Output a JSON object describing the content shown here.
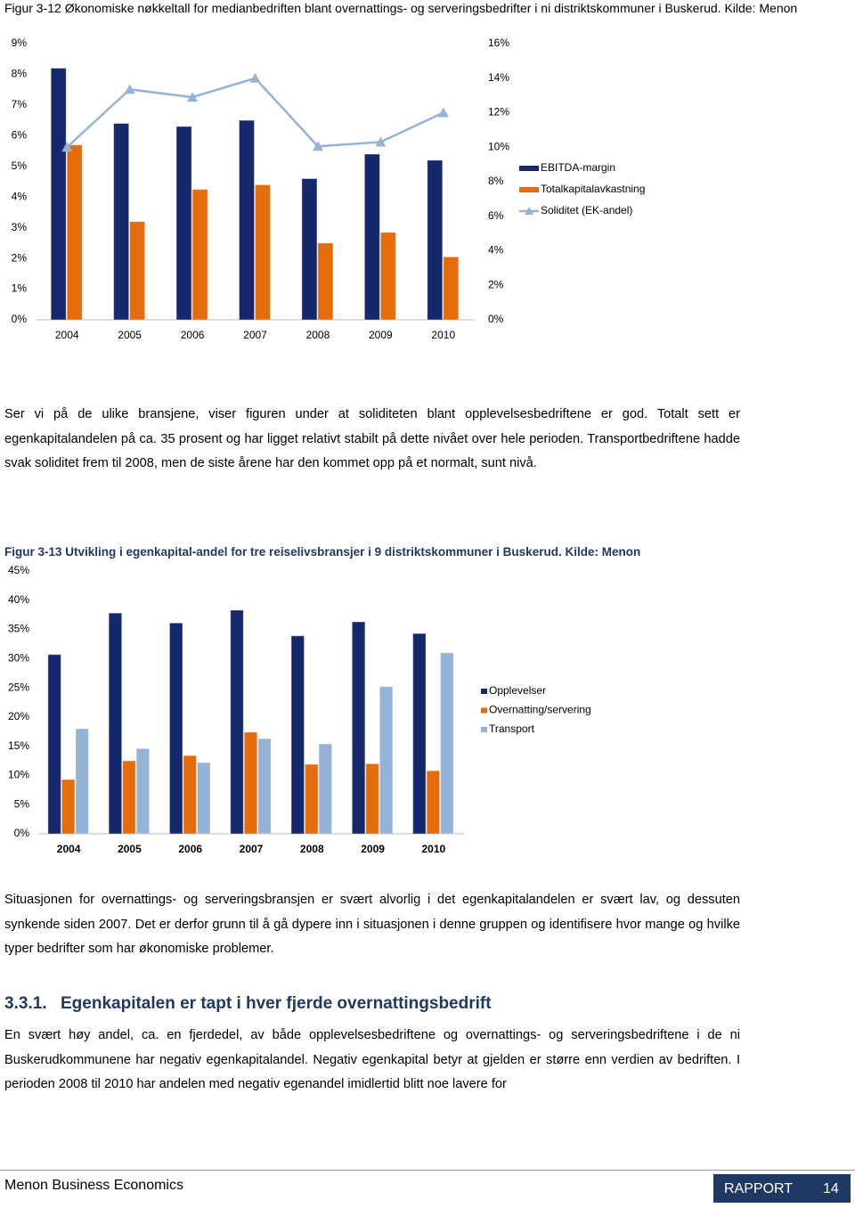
{
  "chart_data": [
    {
      "type": "bar",
      "title": "Figur 3-12 Økonomiske nøkkeltall for medianbedriften blant overnattings- og serveringsbedrifter i ni distriktskommuner i Buskerud. Kilde: Menon",
      "categories": [
        "2004",
        "2005",
        "2006",
        "2007",
        "2008",
        "2009",
        "2010"
      ],
      "series": [
        {
          "name": "EBITDA-margin",
          "color": "#14286b",
          "values": [
            8.2,
            6.4,
            6.3,
            6.5,
            4.6,
            5.4,
            5.2
          ]
        },
        {
          "name": "Totalkapitalavkastning",
          "color": "#e46c0a",
          "values": [
            5.7,
            3.2,
            4.25,
            4.4,
            2.5,
            2.85,
            2.05
          ]
        },
        {
          "name": "Soliditet (EK-andel)",
          "color": "#95b3d7",
          "type": "line",
          "axis": "y2",
          "values": [
            10.0,
            13.35,
            12.9,
            14.0,
            10.05,
            10.3,
            12.0
          ]
        }
      ],
      "ylim": [
        0,
        9
      ],
      "yticks": [
        {
          "value": 0,
          "label": "0%"
        },
        {
          "value": 1,
          "label": "1%"
        },
        {
          "value": 2,
          "label": "2%"
        },
        {
          "value": 3,
          "label": "3%"
        },
        {
          "value": 4,
          "label": "4%"
        },
        {
          "value": 5,
          "label": "5%"
        },
        {
          "value": 6,
          "label": "6%"
        },
        {
          "value": 7,
          "label": "7%"
        },
        {
          "value": 8,
          "label": "8%"
        },
        {
          "value": 9,
          "label": "9%"
        }
      ],
      "y2lim": [
        0,
        16
      ],
      "y2ticks": [
        {
          "value": 0,
          "label": "0%"
        },
        {
          "value": 2,
          "label": "2%"
        },
        {
          "value": 4,
          "label": "4%"
        },
        {
          "value": 6,
          "label": "6%"
        },
        {
          "value": 8,
          "label": "8%"
        },
        {
          "value": 10,
          "label": "10%"
        },
        {
          "value": 12,
          "label": "12%"
        },
        {
          "value": 14,
          "label": "14%"
        },
        {
          "value": 16,
          "label": "16%"
        }
      ],
      "grid": false,
      "legend": "right"
    },
    {
      "type": "bar",
      "title": "Figur 3-13 Utvikling i egenkapital-andel for tre reiselivsbransjer i 9 distriktskommuner i Buskerud. Kilde: Menon",
      "categories": [
        "2004",
        "2005",
        "2006",
        "2007",
        "2008",
        "2009",
        "2010"
      ],
      "series": [
        {
          "name": "Opplevelser",
          "color": "#14286b",
          "values": [
            30.7,
            37.8,
            36.1,
            38.3,
            33.9,
            36.3,
            34.3
          ]
        },
        {
          "name": "Overnatting/servering",
          "color": "#e46c0a",
          "values": [
            9.3,
            12.5,
            13.4,
            17.4,
            11.9,
            12.0,
            10.8
          ]
        },
        {
          "name": "Transport",
          "color": "#95b3d7",
          "values": [
            18.0,
            14.6,
            12.2,
            16.3,
            15.4,
            25.2,
            31.0
          ]
        }
      ],
      "ylim": [
        0,
        45
      ],
      "yticks": [
        {
          "value": 0,
          "label": "0%"
        },
        {
          "value": 5,
          "label": "5%"
        },
        {
          "value": 10,
          "label": "10%"
        },
        {
          "value": 15,
          "label": "15%"
        },
        {
          "value": 20,
          "label": "20%"
        },
        {
          "value": 25,
          "label": "25%"
        },
        {
          "value": 30,
          "label": "30%"
        },
        {
          "value": 35,
          "label": "35%"
        },
        {
          "value": 40,
          "label": "40%"
        },
        {
          "value": 45,
          "label": "45%"
        }
      ],
      "grid": false,
      "legend": "right"
    }
  ],
  "document": {
    "paragraphs": [
      "Ser vi på de ulike bransjene, viser figuren under at soliditeten blant opplevelsesbedriftene er god. Totalt sett er egenkapitalandelen på ca. 35 prosent og har ligget relativt stabilt på dette nivået over hele perioden. Transportbedriftene hadde svak soliditet frem til 2008, men de siste årene har den kommet opp på et normalt, sunt nivå.",
      "Situasjonen for overnattings- og serveringsbransjen er svært alvorlig i det egenkapitalandelen er svært lav, og dessuten synkende siden 2007. Det er derfor grunn til å gå dypere inn i situasjonen i denne gruppen og identifisere hvor mange og hvilke typer bedrifter som har økonomiske problemer.",
      "En svært høy andel, ca. en fjerdedel, av både opplevelsesbedriftene og overnattings- og serveringsbedriftene i de ni Buskerudkommunene har negativ egenkapitalandel. Negativ egenkapital betyr at gjelden er større enn verdien av bedriften. I perioden 2008 til 2010 har andelen med negativ egenandel imidlertid blitt noe lavere for"
    ],
    "heading": {
      "number": "3.3.1.",
      "text": "Egenkapitalen er tapt i hver fjerde overnattingsbedrift"
    },
    "footer": {
      "left": "Menon Business Economics",
      "label": "RAPPORT",
      "page": 14
    }
  }
}
